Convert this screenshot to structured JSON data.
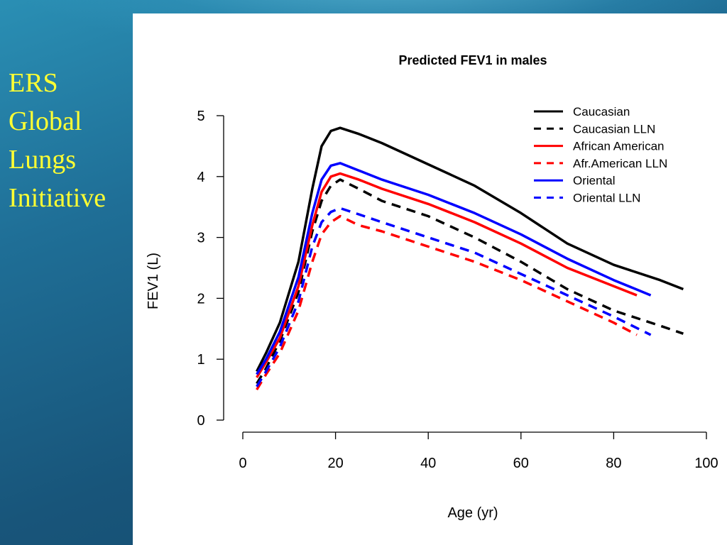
{
  "slide": {
    "title_lines": [
      "ERS",
      "Global",
      "Lungs",
      "Initiative"
    ],
    "title_color": "#ffff33"
  },
  "chart_data": {
    "type": "line",
    "title": "Predicted FEV1 in males",
    "xlabel": "Age (yr)",
    "ylabel": "FEV1 (L)",
    "xlim": [
      0,
      100
    ],
    "ylim": [
      0,
      5
    ],
    "x_ticks": [
      "0",
      "20",
      "40",
      "60",
      "80",
      "100"
    ],
    "y_ticks": [
      "0",
      "1",
      "2",
      "3",
      "4",
      "5"
    ],
    "grid": false,
    "legend_position": "top-right",
    "series": [
      {
        "name": "Caucasian",
        "color": "#000000",
        "style": "solid",
        "x": [
          3,
          5,
          8,
          12,
          15,
          17,
          19,
          21,
          25,
          30,
          40,
          50,
          60,
          70,
          80,
          90,
          95
        ],
        "y": [
          0.8,
          1.1,
          1.6,
          2.6,
          3.8,
          4.5,
          4.75,
          4.8,
          4.7,
          4.55,
          4.2,
          3.85,
          3.4,
          2.9,
          2.55,
          2.3,
          2.15
        ]
      },
      {
        "name": "Caucasian LLN",
        "color": "#000000",
        "style": "dashed",
        "x": [
          3,
          5,
          8,
          12,
          15,
          17,
          19,
          21,
          25,
          30,
          40,
          50,
          60,
          70,
          80,
          90,
          95
        ],
        "y": [
          0.6,
          0.85,
          1.3,
          2.1,
          3.1,
          3.6,
          3.85,
          3.95,
          3.8,
          3.6,
          3.35,
          3.0,
          2.6,
          2.15,
          1.8,
          1.55,
          1.42
        ]
      },
      {
        "name": "African American",
        "color": "#ff0000",
        "style": "solid",
        "x": [
          3,
          5,
          8,
          12,
          15,
          17,
          19,
          21,
          25,
          30,
          40,
          50,
          60,
          70,
          80,
          85
        ],
        "y": [
          0.7,
          0.95,
          1.35,
          2.2,
          3.2,
          3.75,
          4.0,
          4.05,
          3.95,
          3.8,
          3.55,
          3.25,
          2.9,
          2.5,
          2.2,
          2.05
        ]
      },
      {
        "name": "Afr.American LLN",
        "color": "#ff0000",
        "style": "dashed",
        "x": [
          3,
          5,
          8,
          12,
          15,
          17,
          19,
          21,
          25,
          30,
          40,
          50,
          60,
          70,
          80,
          85
        ],
        "y": [
          0.5,
          0.75,
          1.1,
          1.8,
          2.6,
          3.05,
          3.25,
          3.35,
          3.2,
          3.1,
          2.85,
          2.6,
          2.3,
          1.95,
          1.6,
          1.4
        ]
      },
      {
        "name": "Oriental",
        "color": "#0000ff",
        "style": "solid",
        "x": [
          3,
          5,
          8,
          12,
          15,
          17,
          19,
          21,
          25,
          30,
          40,
          50,
          60,
          70,
          80,
          88
        ],
        "y": [
          0.75,
          1.0,
          1.45,
          2.35,
          3.4,
          3.95,
          4.18,
          4.22,
          4.1,
          3.95,
          3.7,
          3.4,
          3.05,
          2.65,
          2.3,
          2.05
        ]
      },
      {
        "name": "Oriental LLN",
        "color": "#0000ff",
        "style": "dashed",
        "x": [
          3,
          5,
          8,
          12,
          15,
          17,
          19,
          21,
          25,
          30,
          40,
          50,
          60,
          70,
          80,
          88
        ],
        "y": [
          0.55,
          0.8,
          1.2,
          1.95,
          2.85,
          3.25,
          3.42,
          3.48,
          3.38,
          3.25,
          3.0,
          2.75,
          2.4,
          2.05,
          1.7,
          1.4
        ]
      }
    ]
  }
}
